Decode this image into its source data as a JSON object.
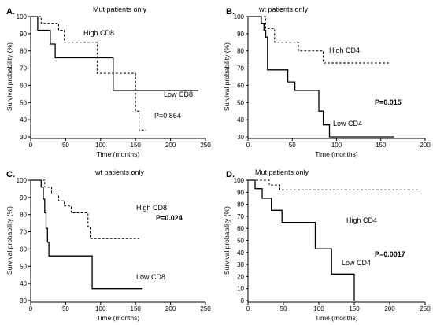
{
  "chart_data": [
    {
      "panel_label": "A.",
      "title": "Mut patients only",
      "type": "line",
      "xlabel": "Time (months)",
      "ylabel": "Survival probability (%)",
      "xlim": [
        0,
        250
      ],
      "ylim": [
        30,
        100
      ],
      "xticks": [
        "0",
        "50",
        "100",
        "150",
        "200",
        "250"
      ],
      "yticks": [
        "30",
        "40",
        "50",
        "60",
        "70",
        "80",
        "90",
        "100"
      ],
      "pvalue": "P=0.864",
      "pvalue_bold": false,
      "series": [
        {
          "name": "High CD8",
          "style": "dashed",
          "x": [
            0,
            15,
            15,
            40,
            40,
            48,
            48,
            95,
            95,
            150,
            150,
            155,
            155,
            165
          ],
          "y": [
            100,
            100,
            96,
            96,
            92,
            92,
            85,
            85,
            67,
            67,
            45,
            45,
            34,
            34
          ]
        },
        {
          "name": "Low CD8",
          "style": "solid",
          "x": [
            0,
            10,
            10,
            28,
            28,
            35,
            35,
            118,
            118,
            240
          ],
          "y": [
            100,
            100,
            92,
            92,
            84,
            84,
            76,
            76,
            57,
            57
          ]
        }
      ]
    },
    {
      "panel_label": "B.",
      "title": "wt patients only",
      "type": "line",
      "xlabel": "Time (months)",
      "ylabel": "Survival probability (%)",
      "xlim": [
        0,
        200
      ],
      "ylim": [
        30,
        100
      ],
      "xticks": [
        "0",
        "50",
        "100",
        "150",
        "200"
      ],
      "yticks": [
        "30",
        "40",
        "50",
        "60",
        "70",
        "80",
        "90",
        "100"
      ],
      "pvalue": "P=0.015",
      "pvalue_bold": true,
      "series": [
        {
          "name": "High CD4",
          "style": "dashed",
          "x": [
            0,
            20,
            20,
            30,
            30,
            57,
            57,
            85,
            85,
            160
          ],
          "y": [
            100,
            100,
            93,
            93,
            85,
            85,
            80,
            80,
            73,
            73
          ]
        },
        {
          "name": "Low CD4",
          "style": "solid",
          "x": [
            0,
            15,
            15,
            18,
            18,
            20,
            20,
            22,
            22,
            28,
            28,
            45,
            45,
            53,
            53,
            80,
            80,
            85,
            85,
            92,
            92,
            165
          ],
          "y": [
            100,
            100,
            96,
            96,
            92,
            92,
            88,
            88,
            69,
            69,
            69,
            69,
            62,
            62,
            57,
            57,
            45,
            45,
            37,
            37,
            30,
            30
          ]
        }
      ]
    },
    {
      "panel_label": "C.",
      "title": "wt patients only",
      "type": "line",
      "xlabel": "Time (months)",
      "ylabel": "Survival probability (%)",
      "xlim": [
        0,
        250
      ],
      "ylim": [
        30,
        100
      ],
      "xticks": [
        "0",
        "50",
        "100",
        "150",
        "200",
        "250"
      ],
      "yticks": [
        "30",
        "40",
        "50",
        "60",
        "70",
        "80",
        "90",
        "100"
      ],
      "pvalue": "P=0.024",
      "pvalue_bold": true,
      "series": [
        {
          "name": "High CD8",
          "style": "dashed",
          "x": [
            0,
            20,
            20,
            30,
            30,
            40,
            40,
            48,
            48,
            58,
            58,
            65,
            65,
            82,
            82,
            85,
            85,
            155
          ],
          "y": [
            100,
            100,
            96,
            96,
            92,
            92,
            88,
            88,
            85,
            85,
            81,
            81,
            81,
            81,
            73,
            73,
            66,
            66
          ]
        },
        {
          "name": "Low CD8",
          "style": "solid",
          "x": [
            0,
            15,
            15,
            18,
            18,
            20,
            20,
            22,
            22,
            24,
            24,
            26,
            26,
            88,
            88,
            160
          ],
          "y": [
            100,
            100,
            96,
            96,
            89,
            89,
            81,
            81,
            72,
            72,
            64,
            64,
            56,
            56,
            37,
            37
          ]
        }
      ]
    },
    {
      "panel_label": "D.",
      "title": "Mut patients only",
      "type": "line",
      "xlabel": "Time (months)",
      "ylabel": "Survival probability (%)",
      "xlim": [
        0,
        250
      ],
      "ylim": [
        0,
        100
      ],
      "xticks": [
        "0",
        "50",
        "100",
        "150",
        "200",
        "250"
      ],
      "yticks": [
        "0",
        "10",
        "20",
        "30",
        "40",
        "50",
        "60",
        "70",
        "80",
        "90",
        "100"
      ],
      "pvalue": "P=0.0017",
      "pvalue_bold": true,
      "series": [
        {
          "name": "High CD4",
          "style": "dashed",
          "x": [
            0,
            30,
            30,
            45,
            45,
            240
          ],
          "y": [
            100,
            100,
            96,
            96,
            92,
            92
          ]
        },
        {
          "name": "Low CD4",
          "style": "solid",
          "x": [
            0,
            10,
            10,
            20,
            20,
            33,
            33,
            48,
            48,
            95,
            95,
            118,
            118,
            150,
            150
          ],
          "y": [
            100,
            100,
            93,
            93,
            85,
            85,
            75,
            75,
            65,
            65,
            43,
            43,
            22,
            22,
            0
          ]
        }
      ]
    }
  ]
}
